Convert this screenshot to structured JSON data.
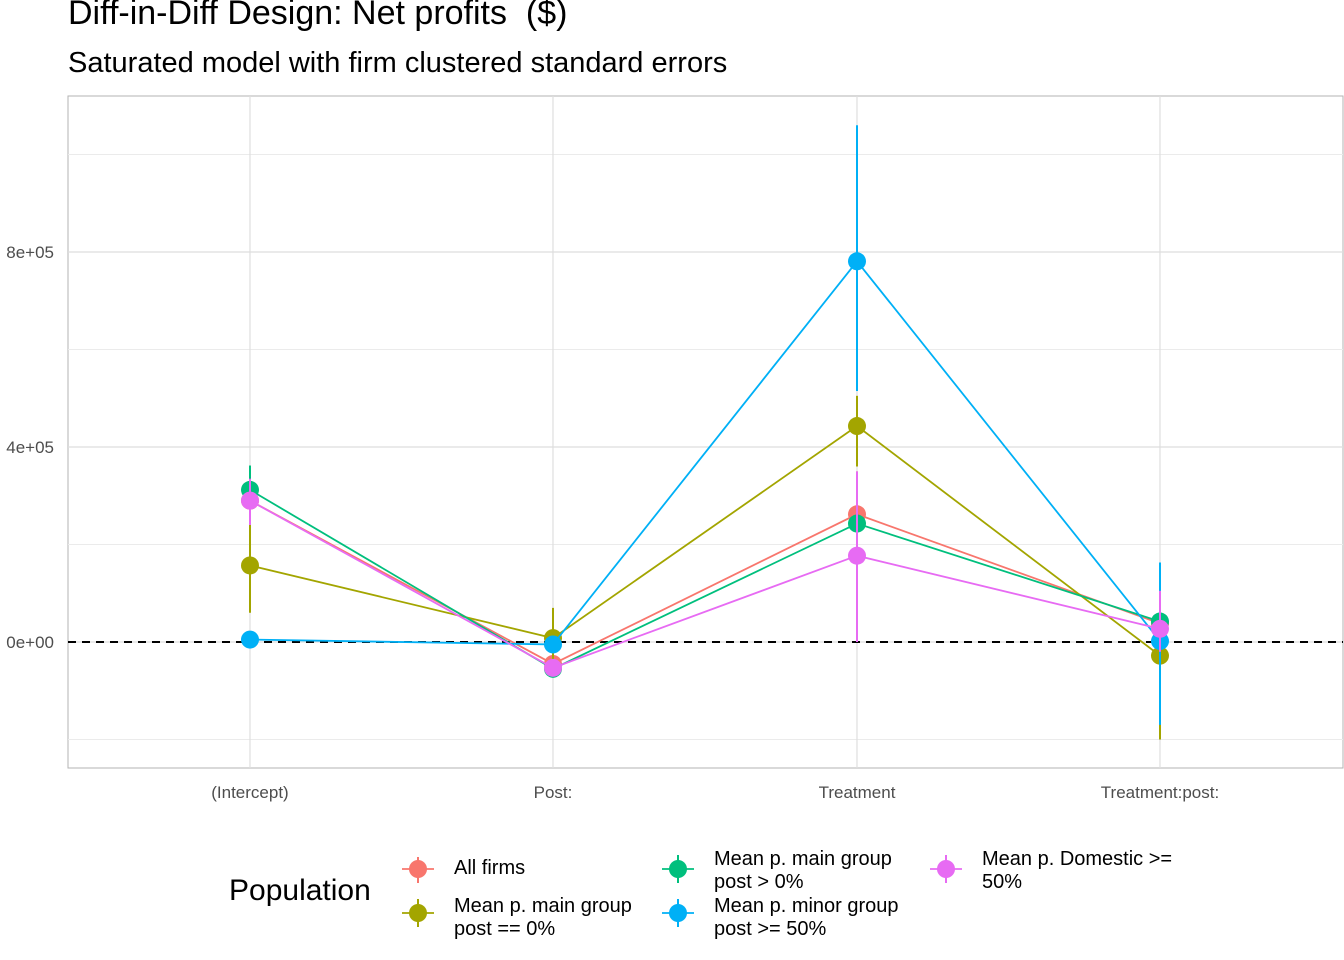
{
  "title": "Diff-in-Diff Design: Net profits  ($)",
  "subtitle": "Saturated model with firm clustered standard errors",
  "legend_title": "Population",
  "chart_data": {
    "type": "line",
    "x_axis": {
      "type": "categorical",
      "categories": [
        "(Intercept)",
        "Post:",
        "Treatment",
        "Treatment:post:"
      ]
    },
    "y_axis": {
      "ticks": [
        0,
        400000,
        800000
      ],
      "tick_labels": [
        "0e+00",
        "4e+05",
        "8e+05"
      ],
      "ylim": [
        -260000,
        1110000
      ]
    },
    "reference_line": {
      "y": 0,
      "style": "dashed"
    },
    "grid": true,
    "legend_position": "bottom",
    "series": [
      {
        "name": "All firms",
        "color": "#F8766D",
        "values": [
          290000,
          -45000,
          262000,
          38000
        ],
        "ci_low": [
          230000,
          -58000,
          175000,
          25000
        ],
        "ci_high": [
          350000,
          -32000,
          350000,
          55000
        ]
      },
      {
        "name": "Mean p. main group\npost == 0%",
        "color": "#A3A500",
        "values": [
          157000,
          8000,
          443000,
          -28000
        ],
        "ci_low": [
          60000,
          -50000,
          360000,
          -200000
        ],
        "ci_high": [
          255000,
          70000,
          505000,
          100000
        ]
      },
      {
        "name": "Mean p. main group\npost > 0%",
        "color": "#00BF7D",
        "values": [
          312000,
          -55000,
          243000,
          42000
        ],
        "ci_low": [
          255000,
          -70000,
          150000,
          25000
        ],
        "ci_high": [
          362000,
          -40000,
          340000,
          60000
        ]
      },
      {
        "name": "Mean p. minor group\npost >= 50%",
        "color": "#00B0F6",
        "values": [
          5000,
          -5000,
          781000,
          2000
        ],
        "ci_low": [
          -5000,
          -20000,
          515000,
          -170000
        ],
        "ci_high": [
          15000,
          10000,
          1060000,
          163000
        ]
      },
      {
        "name": "Mean p. Domestic >=\n50%",
        "color": "#E76BF3",
        "values": [
          290000,
          -53000,
          177000,
          27000
        ],
        "ci_low": [
          240000,
          -65000,
          0,
          -20000
        ],
        "ci_high": [
          335000,
          -40000,
          350000,
          105000
        ]
      }
    ]
  }
}
